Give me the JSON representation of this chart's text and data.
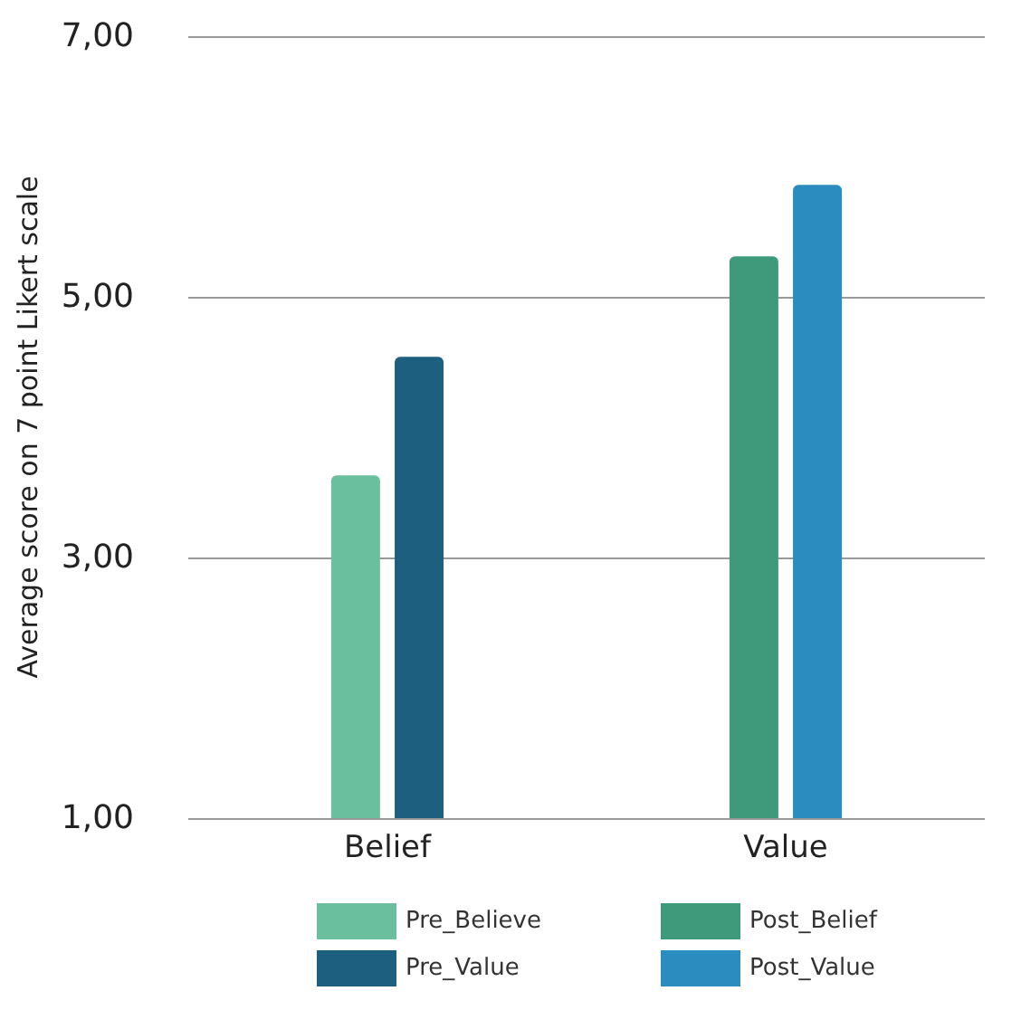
{
  "chart_data": {
    "type": "bar",
    "ylabel": "Average score on 7 point Likert scale",
    "categories": [
      "Belief",
      "Value"
    ],
    "series": [
      {
        "name": "Pre_Believe",
        "color": "#6abf9e",
        "values": [
          3.63,
          null
        ]
      },
      {
        "name": "Pre_Value",
        "color": "#1c5f7f",
        "values": [
          4.54,
          null
        ]
      },
      {
        "name": "Post_Belief",
        "color": "#3f9a7c",
        "values": [
          null,
          5.31
        ]
      },
      {
        "name": "Post_Value",
        "color": "#2b8cbf",
        "values": [
          null,
          5.86
        ]
      }
    ],
    "ylim": [
      1,
      7
    ],
    "yticks": [
      {
        "value": 1,
        "label": "1,00"
      },
      {
        "value": 3,
        "label": "3,00"
      },
      {
        "value": 5,
        "label": "5,00"
      },
      {
        "value": 7,
        "label": "7,00"
      }
    ],
    "grid": "y",
    "legend": "bottom"
  }
}
